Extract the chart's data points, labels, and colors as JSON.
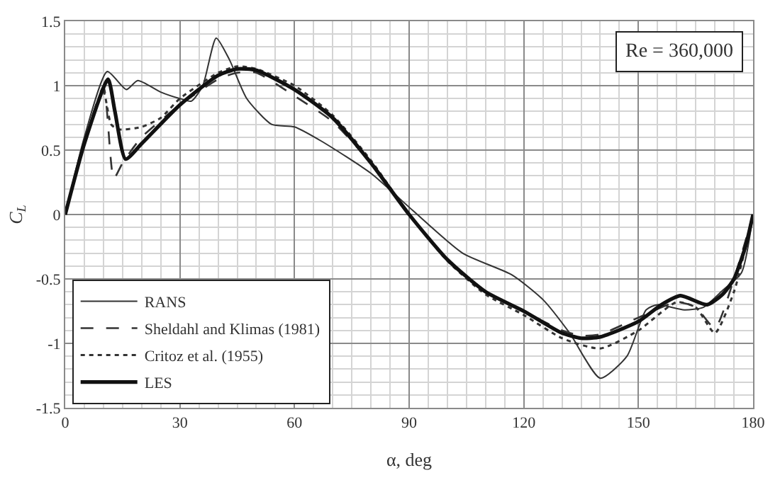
{
  "chart_data": {
    "type": "line",
    "xlabel": "α, deg",
    "ylabel": "C$_{L}$",
    "annotations": [
      "Re = 360,000"
    ],
    "xlim": [
      0,
      180
    ],
    "xticks": [
      0,
      30,
      60,
      90,
      120,
      150,
      180
    ],
    "ylim": [
      -1.5,
      1.5
    ],
    "yticks": [
      -1.5,
      -1,
      -0.5,
      0,
      0.5,
      1,
      1.5
    ],
    "grid": true,
    "legend": "bottom left",
    "marker": "none",
    "series": [
      {
        "name": "RANS",
        "color": "#333333",
        "line_style": "solid",
        "x": [
          0,
          5,
          11,
          16,
          19,
          25,
          30,
          33,
          36,
          39.5,
          43,
          47.5,
          54,
          60,
          67,
          80,
          91,
          104,
          117,
          125,
          132,
          140,
          147,
          152,
          155,
          162,
          167,
          172,
          177,
          180
        ],
        "values": [
          0,
          0.6,
          1.11,
          0.97,
          1.04,
          0.95,
          0.9,
          0.88,
          1.0,
          1.37,
          1.2,
          0.9,
          0.7,
          0.68,
          0.57,
          0.32,
          0.03,
          -0.3,
          -0.47,
          -0.66,
          -0.92,
          -1.27,
          -1.1,
          -0.74,
          -0.7,
          -0.74,
          -0.72,
          -0.59,
          -0.45,
          0
        ]
      },
      {
        "name": "Sheldahl and Klimas (1981)",
        "color": "#333333",
        "line_style": "dashed",
        "x": [
          0,
          5,
          10,
          12.7,
          15,
          20,
          30,
          40,
          45,
          50,
          60,
          70,
          80,
          90,
          100,
          110,
          120,
          130,
          135,
          140,
          150,
          160,
          165,
          170,
          175,
          180
        ],
        "values": [
          0,
          0.55,
          0.99,
          0.28,
          0.4,
          0.6,
          0.85,
          1.05,
          1.1,
          1.1,
          0.92,
          0.72,
          0.4,
          0,
          -0.35,
          -0.6,
          -0.75,
          -0.9,
          -0.94,
          -0.93,
          -0.8,
          -0.68,
          -0.72,
          -0.88,
          -0.5,
          0
        ]
      },
      {
        "name": "Critoz et al. (1955)",
        "color": "#333333",
        "line_style": "dotted",
        "x": [
          0,
          5,
          10,
          12,
          14,
          20,
          25,
          30,
          40,
          45,
          50,
          60,
          70,
          80,
          90,
          100,
          110,
          120,
          130,
          140,
          150,
          160,
          165,
          170,
          175,
          180
        ],
        "values": [
          0,
          0.55,
          0.95,
          0.7,
          0.66,
          0.68,
          0.75,
          0.9,
          1.1,
          1.15,
          1.13,
          1.0,
          0.77,
          0.42,
          0,
          -0.36,
          -0.62,
          -0.78,
          -0.96,
          -1.04,
          -0.9,
          -0.68,
          -0.72,
          -0.92,
          -0.6,
          0
        ]
      },
      {
        "name": "LES",
        "color": "#111111",
        "line_style": "solid",
        "x": [
          0,
          5,
          11.2,
          13,
          15.8,
          20,
          30,
          40,
          45,
          50,
          60,
          70,
          80,
          90,
          100,
          110,
          120,
          130,
          135,
          140,
          150,
          156,
          161,
          168,
          172,
          175,
          178,
          180
        ],
        "values": [
          0,
          0.55,
          1.05,
          0.8,
          0.43,
          0.55,
          0.85,
          1.08,
          1.13,
          1.12,
          0.97,
          0.75,
          0.4,
          0,
          -0.35,
          -0.6,
          -0.75,
          -0.92,
          -0.96,
          -0.95,
          -0.83,
          -0.7,
          -0.63,
          -0.7,
          -0.62,
          -0.5,
          -0.25,
          0
        ]
      }
    ]
  }
}
